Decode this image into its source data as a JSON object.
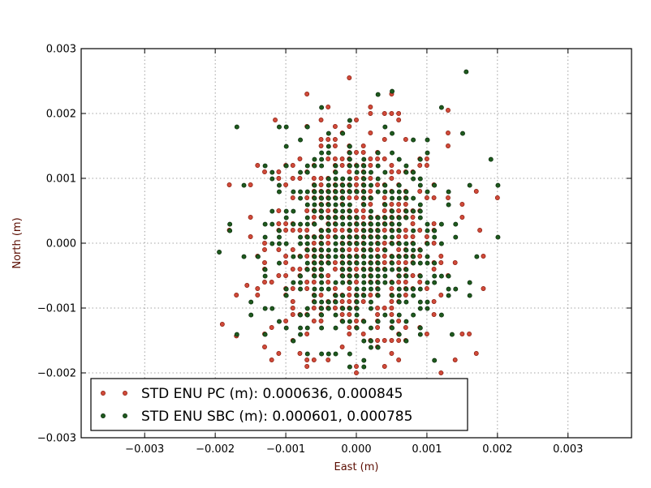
{
  "chart_data": {
    "type": "scatter",
    "title": "",
    "xlabel": "East (m)",
    "ylabel": "North (m)",
    "xlim": [
      -0.0039,
      0.0039
    ],
    "ylim": [
      -0.003,
      0.003
    ],
    "xticks": [
      -0.003,
      -0.002,
      -0.001,
      0.0,
      0.001,
      0.002,
      0.003
    ],
    "xtick_labels": [
      "−0.003",
      "−0.002",
      "−0.001",
      "0.000",
      "0.001",
      "0.002",
      "0.003"
    ],
    "yticks": [
      0.003,
      0.002,
      0.001,
      0.0,
      -0.001,
      -0.002,
      -0.003
    ],
    "ytick_labels": [
      "0.003",
      "0.002",
      "0.001",
      "0.000",
      "−0.001",
      "−0.002",
      "−0.003"
    ],
    "grid": true,
    "legend_position": "lower-left",
    "series": [
      {
        "name": "STD ENU PC (m): 0.000636, 0.000845",
        "color": "#d04a3a",
        "edge": "#8a1a0a",
        "std": [
          0.000636,
          0.000845
        ],
        "grid_step": 0.0001,
        "core_count": 620,
        "outliers": [
          [
            -0.0019,
            -0.00125
          ],
          [
            -0.0017,
            -0.00143
          ],
          [
            -0.00155,
            -0.00065
          ],
          [
            -0.0015,
            0.0004
          ],
          [
            -0.0014,
            0.0012
          ],
          [
            -0.0013,
            -0.0014
          ],
          [
            -0.0012,
            -0.0018
          ],
          [
            -0.00115,
            0.0019
          ],
          [
            -0.0011,
            -0.0005
          ],
          [
            0.0013,
            0.00205
          ],
          [
            0.0012,
            -0.002
          ],
          [
            0.0014,
            -0.0018
          ],
          [
            0.0017,
            0.0008
          ],
          [
            0.00175,
            0.0002
          ],
          [
            0.0018,
            -0.0007
          ],
          [
            0.0016,
            -0.0014
          ],
          [
            -0.0001,
            0.00255
          ],
          [
            0.0005,
            0.0023
          ],
          [
            -0.0007,
            0.0023
          ]
        ]
      },
      {
        "name": "STD ENU SBC (m): 0.000601, 0.000785",
        "color": "#1e5a1e",
        "edge": "#0a2a0a",
        "std": [
          0.000601,
          0.000785
        ],
        "grid_step": 0.0001,
        "core_count": 600,
        "outliers": [
          [
            -0.00195,
            -0.00013
          ],
          [
            -0.0017,
            0.0018
          ],
          [
            -0.0016,
            -0.0002
          ],
          [
            -0.0015,
            -0.0011
          ],
          [
            -0.0012,
            0.0005
          ],
          [
            -0.0011,
            0.0018
          ],
          [
            0.00155,
            0.00265
          ],
          [
            0.0019,
            0.0013
          ],
          [
            0.002,
            0.0009
          ],
          [
            0.002,
            0.0001
          ],
          [
            0.0015,
            0.0017
          ],
          [
            0.0012,
            0.0021
          ],
          [
            0.0011,
            -0.0018
          ],
          [
            0.0003,
            0.0023
          ],
          [
            -0.0005,
            0.0021
          ],
          [
            0.0005,
            0.00235
          ],
          [
            0.00135,
            -0.0014
          ]
        ]
      }
    ]
  }
}
